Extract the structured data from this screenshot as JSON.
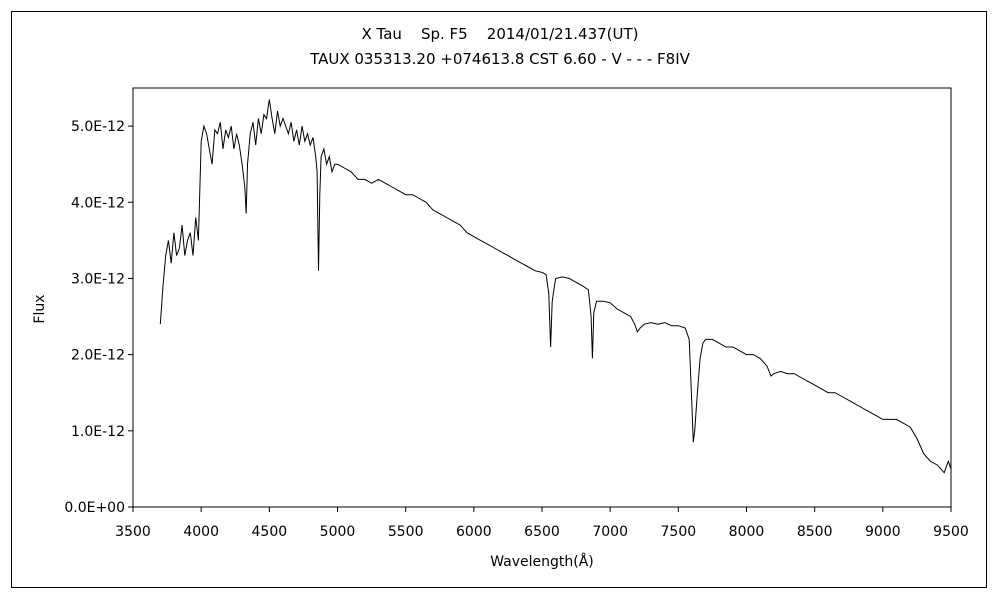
{
  "header": {
    "line1": "X Tau    Sp. F5    2014/01/21.437(UT)",
    "line2": "TAUX 035313.20 +074613.8 CST 6.60 - V - - - F8IV"
  },
  "colors": {
    "line": "#000000",
    "background": "#ffffff",
    "frame": "#000000"
  },
  "chart_data": {
    "type": "line",
    "title": "X Tau    Sp. F5    2014/01/21.437(UT)",
    "subtitle": "TAUX 035313.20 +074613.8 CST 6.60 - V - - - F8IV",
    "xlabel": "Wavelength(Å)",
    "ylabel": "Flux",
    "xlim": [
      3500,
      9500
    ],
    "ylim": [
      0,
      5.5e-12
    ],
    "grid": false,
    "legend": "none",
    "x_ticks": [
      3500,
      4000,
      4500,
      5000,
      5500,
      6000,
      6500,
      7000,
      7500,
      8000,
      8500,
      9000,
      9500
    ],
    "x_tick_labels": [
      "3500",
      "4000",
      "4500",
      "5000",
      "5500",
      "6000",
      "6500",
      "7000",
      "7500",
      "8000",
      "8500",
      "9000",
      "9500"
    ],
    "y_ticks": [
      0,
      1e-12,
      2e-12,
      3e-12,
      4e-12,
      5e-12
    ],
    "y_tick_labels": [
      "0.0E+00",
      "1.0E-12",
      "2.0E-12",
      "3.0E-12",
      "4.0E-12",
      "5.0E-12"
    ],
    "series": [
      {
        "x": [
          3700,
          3720,
          3740,
          3760,
          3780,
          3800,
          3820,
          3840,
          3860,
          3880,
          3900,
          3920,
          3940,
          3960,
          3980,
          4000,
          4020,
          4040,
          4060,
          4080,
          4100,
          4120,
          4140,
          4160,
          4180,
          4200,
          4220,
          4240,
          4260,
          4280,
          4300,
          4320,
          4330,
          4340,
          4350,
          4360,
          4380,
          4400,
          4420,
          4440,
          4460,
          4480,
          4500,
          4520,
          4540,
          4560,
          4580,
          4600,
          4620,
          4640,
          4660,
          4680,
          4700,
          4720,
          4740,
          4760,
          4780,
          4800,
          4820,
          4840,
          4850,
          4861,
          4870,
          4880,
          4900,
          4920,
          4940,
          4960,
          4980,
          5000,
          5050,
          5100,
          5150,
          5200,
          5250,
          5300,
          5350,
          5400,
          5450,
          5500,
          5550,
          5600,
          5650,
          5700,
          5750,
          5800,
          5850,
          5900,
          5950,
          6000,
          6050,
          6100,
          6150,
          6200,
          6250,
          6300,
          6350,
          6400,
          6450,
          6500,
          6530,
          6550,
          6563,
          6575,
          6600,
          6650,
          6700,
          6750,
          6800,
          6840,
          6860,
          6870,
          6880,
          6900,
          6950,
          7000,
          7050,
          7100,
          7150,
          7180,
          7200,
          7220,
          7250,
          7300,
          7350,
          7400,
          7450,
          7500,
          7550,
          7580,
          7600,
          7610,
          7620,
          7640,
          7660,
          7680,
          7700,
          7750,
          7800,
          7850,
          7900,
          7950,
          8000,
          8050,
          8100,
          8150,
          8180,
          8200,
          8250,
          8300,
          8350,
          8400,
          8450,
          8500,
          8550,
          8600,
          8650,
          8700,
          8750,
          8800,
          8850,
          8900,
          8950,
          9000,
          9050,
          9100,
          9150,
          9200,
          9250,
          9300,
          9350,
          9400,
          9450,
          9480,
          9500
        ],
        "values": [
          2.4e-12,
          2.9e-12,
          3.3e-12,
          3.5e-12,
          3.2e-12,
          3.6e-12,
          3.3e-12,
          3.4e-12,
          3.7e-12,
          3.3e-12,
          3.5e-12,
          3.6e-12,
          3.3e-12,
          3.8e-12,
          3.5e-12,
          4.8e-12,
          5e-12,
          4.9e-12,
          4.7e-12,
          4.5e-12,
          4.95e-12,
          4.9e-12,
          5.05e-12,
          4.7e-12,
          4.95e-12,
          4.85e-12,
          5e-12,
          4.7e-12,
          4.9e-12,
          4.75e-12,
          4.5e-12,
          4.2e-12,
          3.85e-12,
          4.5e-12,
          4.7e-12,
          4.9e-12,
          5.05e-12,
          4.75e-12,
          5.1e-12,
          4.9e-12,
          5.15e-12,
          5.1e-12,
          5.35e-12,
          5.1e-12,
          4.9e-12,
          5.2e-12,
          5e-12,
          5.1e-12,
          5e-12,
          4.9e-12,
          5.05e-12,
          4.8e-12,
          4.95e-12,
          4.75e-12,
          5e-12,
          4.8e-12,
          4.9e-12,
          4.75e-12,
          4.85e-12,
          4.6e-12,
          4.4e-12,
          3.1e-12,
          4.1e-12,
          4.6e-12,
          4.7e-12,
          4.5e-12,
          4.6e-12,
          4.4e-12,
          4.5e-12,
          4.5e-12,
          4.45e-12,
          4.4e-12,
          4.3e-12,
          4.3e-12,
          4.25e-12,
          4.3e-12,
          4.25e-12,
          4.2e-12,
          4.15e-12,
          4.1e-12,
          4.1e-12,
          4.05e-12,
          4e-12,
          3.9e-12,
          3.85e-12,
          3.8e-12,
          3.75e-12,
          3.7e-12,
          3.6e-12,
          3.55e-12,
          3.5e-12,
          3.45e-12,
          3.4e-12,
          3.35e-12,
          3.3e-12,
          3.25e-12,
          3.2e-12,
          3.15e-12,
          3.1e-12,
          3.08e-12,
          3.05e-12,
          2.8e-12,
          2.1e-12,
          2.7e-12,
          3e-12,
          3.02e-12,
          3e-12,
          2.95e-12,
          2.9e-12,
          2.85e-12,
          2.5e-12,
          1.95e-12,
          2.55e-12,
          2.7e-12,
          2.7e-12,
          2.68e-12,
          2.6e-12,
          2.55e-12,
          2.5e-12,
          2.4e-12,
          2.3e-12,
          2.35e-12,
          2.4e-12,
          2.42e-12,
          2.4e-12,
          2.42e-12,
          2.38e-12,
          2.38e-12,
          2.35e-12,
          2.2e-12,
          1.3e-12,
          8.5e-13,
          1e-12,
          1.5e-12,
          1.95e-12,
          2.15e-12,
          2.2e-12,
          2.2e-12,
          2.15e-12,
          2.1e-12,
          2.1e-12,
          2.05e-12,
          2e-12,
          2e-12,
          1.95e-12,
          1.85e-12,
          1.72e-12,
          1.75e-12,
          1.78e-12,
          1.75e-12,
          1.75e-12,
          1.7e-12,
          1.65e-12,
          1.6e-12,
          1.55e-12,
          1.5e-12,
          1.5e-12,
          1.45e-12,
          1.4e-12,
          1.35e-12,
          1.3e-12,
          1.25e-12,
          1.2e-12,
          1.15e-12,
          1.15e-12,
          1.15e-12,
          1.1e-12,
          1.05e-12,
          9e-13,
          7e-13,
          6e-13,
          5.5e-13,
          4.5e-13,
          6e-13,
          5e-13
        ]
      }
    ]
  }
}
